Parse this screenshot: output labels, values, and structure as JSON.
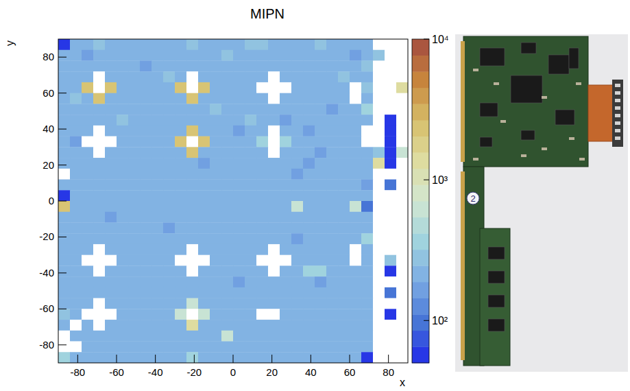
{
  "chart_data": {
    "type": "heatmap",
    "title": "MIPN",
    "x_label": "x",
    "y_label": "y",
    "xlim": [
      -90,
      90
    ],
    "ylim": [
      -90,
      90
    ],
    "xticks": [
      -80,
      -60,
      -40,
      -20,
      0,
      20,
      40,
      60,
      80
    ],
    "yticks": [
      -80,
      -60,
      -40,
      -20,
      0,
      20,
      40,
      60,
      80
    ],
    "x_bins": [
      -90,
      -84,
      -78,
      -72,
      -66,
      -60,
      -54,
      -48,
      -42,
      -36,
      -30,
      -24,
      -18,
      -12,
      -6,
      0,
      6,
      12,
      18,
      24,
      30,
      36,
      42,
      48,
      54,
      60,
      66,
      72,
      78,
      84,
      90
    ],
    "y_bins": [
      90,
      84,
      78,
      72,
      66,
      60,
      54,
      48,
      42,
      36,
      30,
      24,
      18,
      12,
      6,
      0,
      -6,
      -12,
      -18,
      -24,
      -30,
      -36,
      -42,
      -48,
      -54,
      -60,
      -66,
      -72,
      -78,
      -84,
      -90
    ],
    "z": [
      [
        60,
        190,
        190,
        260,
        190,
        190,
        190,
        190,
        190,
        190,
        190,
        260,
        190,
        190,
        190,
        190,
        260,
        260,
        190,
        190,
        190,
        190,
        260,
        190,
        190,
        190,
        190,
        0,
        0,
        0
      ],
      [
        190,
        190,
        150,
        190,
        190,
        190,
        190,
        190,
        190,
        190,
        190,
        190,
        190,
        190,
        260,
        190,
        190,
        190,
        190,
        190,
        190,
        190,
        190,
        190,
        190,
        150,
        190,
        260,
        0,
        0
      ],
      [
        190,
        190,
        190,
        190,
        190,
        190,
        190,
        150,
        190,
        190,
        190,
        190,
        190,
        190,
        190,
        190,
        190,
        190,
        190,
        190,
        190,
        190,
        190,
        190,
        190,
        190,
        260,
        0,
        0,
        0
      ],
      [
        190,
        190,
        190,
        0,
        190,
        190,
        190,
        190,
        190,
        260,
        190,
        0,
        190,
        190,
        190,
        190,
        190,
        190,
        0,
        190,
        190,
        190,
        190,
        190,
        260,
        190,
        190,
        0,
        0,
        0
      ],
      [
        190,
        190,
        2600,
        0,
        2600,
        190,
        190,
        190,
        190,
        190,
        2600,
        0,
        2600,
        190,
        190,
        190,
        190,
        0,
        0,
        0,
        190,
        190,
        190,
        190,
        190,
        0,
        260,
        0,
        0,
        1370
      ],
      [
        190,
        260,
        190,
        2600,
        190,
        190,
        190,
        190,
        190,
        190,
        190,
        2600,
        190,
        190,
        190,
        190,
        190,
        190,
        0,
        190,
        190,
        190,
        190,
        190,
        190,
        0,
        190,
        0,
        0,
        0
      ],
      [
        190,
        190,
        190,
        190,
        190,
        190,
        190,
        190,
        190,
        190,
        190,
        190,
        190,
        260,
        190,
        190,
        190,
        190,
        190,
        190,
        190,
        190,
        190,
        150,
        190,
        190,
        365,
        0,
        0,
        0
      ],
      [
        190,
        190,
        190,
        190,
        190,
        260,
        190,
        190,
        190,
        190,
        190,
        190,
        190,
        190,
        190,
        190,
        260,
        190,
        190,
        150,
        190,
        190,
        190,
        190,
        190,
        190,
        190,
        0,
        50,
        0
      ],
      [
        190,
        190,
        190,
        0,
        190,
        190,
        190,
        190,
        190,
        190,
        190,
        2600,
        190,
        190,
        190,
        150,
        190,
        190,
        0,
        190,
        190,
        150,
        190,
        190,
        190,
        190,
        0,
        0,
        50,
        0
      ],
      [
        190,
        150,
        0,
        0,
        0,
        190,
        190,
        190,
        190,
        190,
        2600,
        0,
        2600,
        190,
        190,
        190,
        190,
        365,
        0,
        365,
        190,
        190,
        190,
        190,
        190,
        190,
        0,
        0,
        50,
        0
      ],
      [
        190,
        190,
        190,
        0,
        190,
        190,
        190,
        190,
        190,
        190,
        190,
        2600,
        190,
        190,
        190,
        190,
        190,
        190,
        0,
        190,
        190,
        190,
        150,
        190,
        190,
        190,
        190,
        260,
        50,
        700
      ],
      [
        190,
        190,
        190,
        190,
        190,
        190,
        190,
        190,
        190,
        190,
        190,
        190,
        150,
        190,
        190,
        190,
        190,
        190,
        190,
        190,
        190,
        150,
        190,
        190,
        190,
        190,
        190,
        1370,
        50,
        0
      ],
      [
        0,
        190,
        190,
        190,
        190,
        190,
        190,
        190,
        190,
        190,
        190,
        190,
        190,
        190,
        190,
        190,
        190,
        190,
        190,
        190,
        150,
        190,
        190,
        190,
        190,
        190,
        190,
        0,
        0,
        0
      ],
      [
        190,
        190,
        190,
        190,
        190,
        190,
        190,
        190,
        190,
        190,
        190,
        190,
        190,
        190,
        190,
        190,
        190,
        190,
        190,
        190,
        190,
        190,
        190,
        190,
        190,
        190,
        150,
        0,
        97,
        0
      ],
      [
        60,
        190,
        190,
        190,
        190,
        190,
        190,
        190,
        190,
        190,
        190,
        190,
        190,
        190,
        190,
        190,
        190,
        190,
        190,
        190,
        190,
        190,
        190,
        190,
        190,
        190,
        190,
        0,
        0,
        0
      ],
      [
        2600,
        190,
        190,
        190,
        190,
        190,
        190,
        190,
        190,
        190,
        190,
        190,
        190,
        190,
        190,
        190,
        190,
        190,
        190,
        190,
        700,
        190,
        190,
        190,
        190,
        700,
        97,
        0,
        0,
        0
      ],
      [
        190,
        190,
        190,
        190,
        150,
        190,
        190,
        190,
        190,
        190,
        190,
        190,
        190,
        190,
        190,
        190,
        190,
        190,
        190,
        190,
        190,
        190,
        190,
        190,
        190,
        190,
        190,
        0,
        0,
        0
      ],
      [
        190,
        190,
        190,
        190,
        190,
        190,
        190,
        190,
        190,
        150,
        190,
        190,
        190,
        190,
        190,
        190,
        190,
        190,
        190,
        190,
        190,
        190,
        190,
        190,
        190,
        190,
        190,
        0,
        0,
        0
      ],
      [
        190,
        190,
        190,
        190,
        190,
        190,
        190,
        190,
        190,
        190,
        190,
        190,
        190,
        190,
        190,
        190,
        190,
        190,
        190,
        190,
        150,
        190,
        190,
        190,
        190,
        190,
        365,
        0,
        0,
        0
      ],
      [
        190,
        190,
        190,
        0,
        190,
        190,
        190,
        190,
        190,
        190,
        190,
        0,
        190,
        190,
        190,
        190,
        190,
        190,
        0,
        190,
        190,
        190,
        190,
        190,
        190,
        0,
        190,
        0,
        0,
        0
      ],
      [
        190,
        190,
        0,
        0,
        0,
        190,
        190,
        190,
        190,
        190,
        0,
        0,
        0,
        190,
        190,
        190,
        190,
        0,
        0,
        0,
        190,
        190,
        190,
        190,
        190,
        0,
        190,
        0,
        260,
        0
      ],
      [
        190,
        190,
        190,
        0,
        190,
        190,
        190,
        190,
        190,
        190,
        190,
        0,
        190,
        190,
        190,
        190,
        190,
        190,
        0,
        190,
        190,
        365,
        365,
        190,
        190,
        190,
        190,
        0,
        50,
        0
      ],
      [
        190,
        190,
        190,
        190,
        190,
        190,
        190,
        190,
        190,
        190,
        190,
        190,
        190,
        190,
        190,
        150,
        190,
        190,
        190,
        190,
        190,
        190,
        150,
        190,
        190,
        190,
        190,
        0,
        0,
        0
      ],
      [
        190,
        190,
        190,
        190,
        190,
        190,
        190,
        190,
        190,
        190,
        190,
        190,
        190,
        190,
        190,
        190,
        190,
        190,
        190,
        190,
        190,
        190,
        190,
        190,
        190,
        190,
        190,
        0,
        97,
        0
      ],
      [
        190,
        190,
        190,
        0,
        190,
        190,
        190,
        190,
        190,
        190,
        190,
        700,
        190,
        190,
        190,
        190,
        190,
        190,
        190,
        190,
        190,
        190,
        190,
        190,
        190,
        190,
        190,
        0,
        0,
        0
      ],
      [
        260,
        190,
        0,
        0,
        0,
        190,
        190,
        190,
        190,
        190,
        700,
        0,
        700,
        190,
        190,
        190,
        190,
        0,
        0,
        190,
        190,
        190,
        190,
        190,
        190,
        190,
        190,
        0,
        50,
        0
      ],
      [
        190,
        0,
        190,
        0,
        190,
        190,
        190,
        190,
        190,
        190,
        190,
        1370,
        190,
        190,
        190,
        190,
        190,
        190,
        190,
        190,
        190,
        190,
        190,
        190,
        190,
        190,
        190,
        0,
        0,
        0
      ],
      [
        0,
        190,
        190,
        190,
        190,
        190,
        190,
        190,
        190,
        190,
        190,
        190,
        190,
        190,
        700,
        190,
        190,
        190,
        190,
        190,
        190,
        190,
        190,
        190,
        190,
        190,
        190,
        0,
        0,
        0
      ],
      [
        0,
        0,
        190,
        190,
        190,
        190,
        190,
        190,
        190,
        190,
        190,
        190,
        190,
        190,
        190,
        190,
        190,
        190,
        190,
        190,
        190,
        190,
        190,
        190,
        190,
        190,
        190,
        0,
        0,
        0
      ],
      [
        365,
        190,
        190,
        190,
        190,
        190,
        190,
        190,
        190,
        190,
        190,
        365,
        190,
        190,
        190,
        190,
        190,
        190,
        190,
        190,
        190,
        190,
        190,
        190,
        190,
        190,
        50,
        0,
        0,
        0
      ]
    ],
    "colorbar": {
      "range": [
        50,
        10000
      ],
      "log": true,
      "ticks": [
        {
          "value": 100,
          "label": "10²"
        },
        {
          "value": 1000,
          "label": "10³"
        },
        {
          "value": 10000,
          "label": "10⁴"
        }
      ]
    }
  },
  "photo": {
    "sticker": "2"
  }
}
